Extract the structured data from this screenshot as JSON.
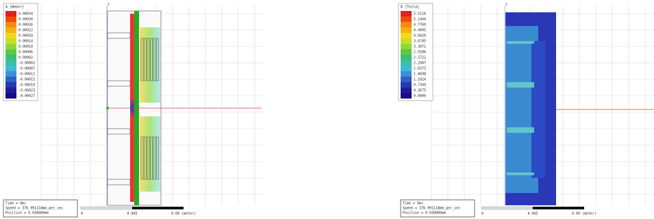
{
  "left_panel": {
    "legend": {
      "title": "A [Weber]",
      "values": [
        "0.00034",
        "0.00030",
        "0.00026",
        "0.00022",
        "0.00018",
        "0.00014",
        "0.00010",
        "0.00006",
        "0.00002",
        "-0.00002",
        "-0.00007",
        "-0.00011",
        "-0.00015",
        "-0.00019",
        "-0.00023",
        "-0.00027"
      ]
    },
    "axis_label": "z",
    "info": {
      "time": "Time = 0ms",
      "speed": "Speed = 376.991118mm_per_sec",
      "position": "Position = 0.030000mm"
    },
    "scale": [
      "0",
      "0.045",
      "0.09 (meter)"
    ]
  },
  "right_panel": {
    "legend": {
      "title": "B [Tesla]",
      "values": [
        "5.5118",
        "5.1444",
        "4.7769",
        "4.4095",
        "4.0420",
        "3.6745",
        "3.3071",
        "2.9396",
        "2.5722",
        "2.2047",
        "1.8373",
        "1.4698",
        "1.1024",
        "0.7349",
        "0.3675",
        "0.0000"
      ]
    },
    "axis_label": "z",
    "info": {
      "time": "Time = 0ms",
      "speed": "Speed = 376.991118mm_per_sec",
      "position": "Position = 0.030000mm"
    },
    "scale": [
      "0",
      "0.045",
      "0.09 (meter)"
    ]
  }
}
